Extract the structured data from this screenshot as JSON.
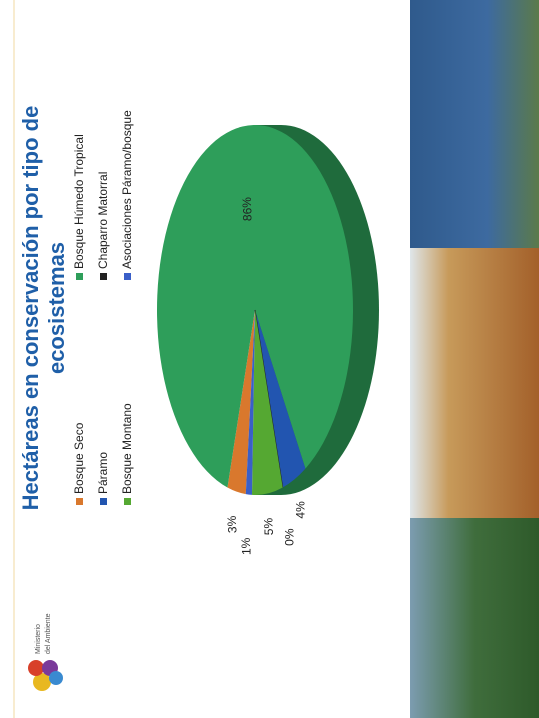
{
  "logo": {
    "line1": "Ministerio",
    "line2": "del Ambiente"
  },
  "chart_data": {
    "type": "pie",
    "title": "Hectáreas en conservación por tipo de ecosistemas",
    "categories": [
      "Bosque Seco",
      "Bosque Húmedo Tropical",
      "Páramo",
      "Chaparro Matorral",
      "Bosque Montano",
      "Asociaciones Páramo/bosque"
    ],
    "values": [
      3,
      86,
      4,
      0,
      5,
      1
    ],
    "colors": [
      "#d9782d",
      "#2e9e5a",
      "#2255b0",
      "#222222",
      "#55a832",
      "#3a5fc8"
    ],
    "legend": "top"
  }
}
